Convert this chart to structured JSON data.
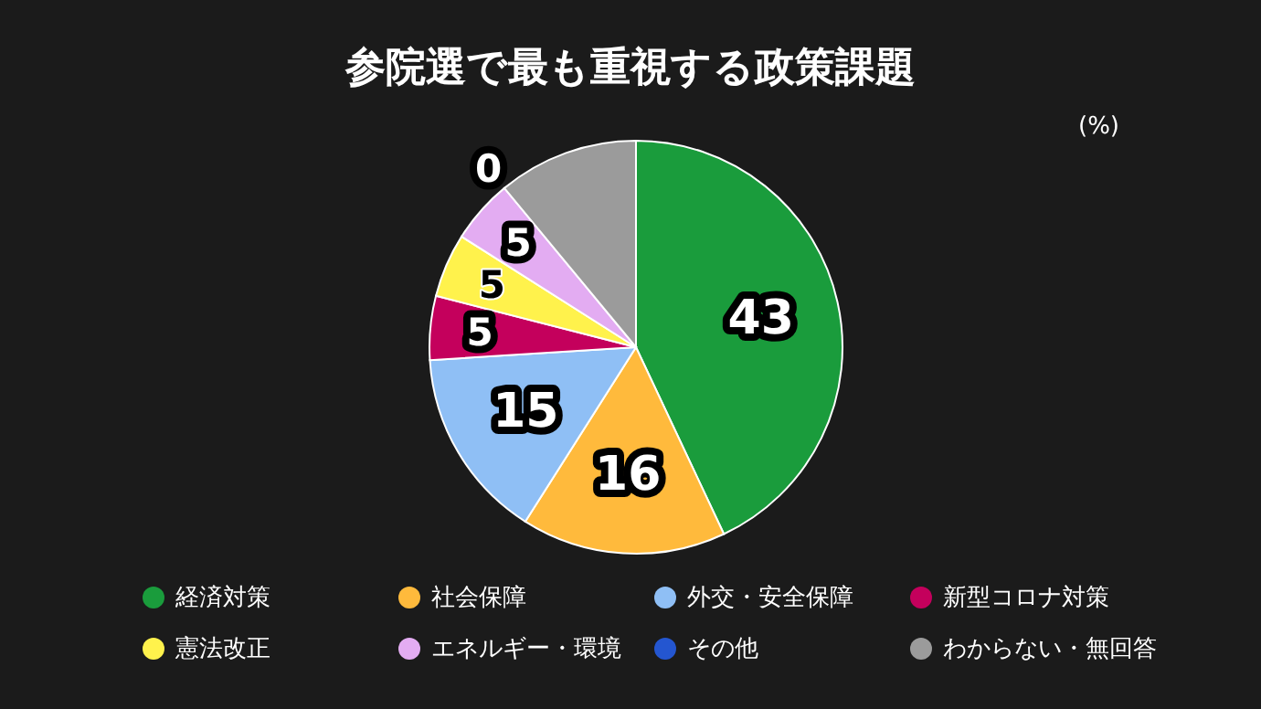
{
  "chart_data": {
    "type": "pie",
    "title": "参院選で最も重視する政策課題",
    "categories": [
      "経済対策",
      "社会保障",
      "外交・安全保障",
      "新型コロナ対策",
      "憲法改正",
      "エネルギー・環境",
      "その他",
      "わからない・無回答"
    ],
    "values": [
      43,
      16,
      15,
      5,
      5,
      5,
      0,
      11
    ],
    "value_labels": [
      "43",
      "16",
      "15",
      "5",
      "5",
      "5",
      "0",
      null
    ],
    "colors": [
      "#1a9c3c",
      "#ffba3c",
      "#8fbff5",
      "#c4005c",
      "#fff24c",
      "#e3acf2",
      "#2456d0",
      "#9b9b9b"
    ],
    "legend": "bottom",
    "annotations": [
      "(%)"
    ]
  }
}
